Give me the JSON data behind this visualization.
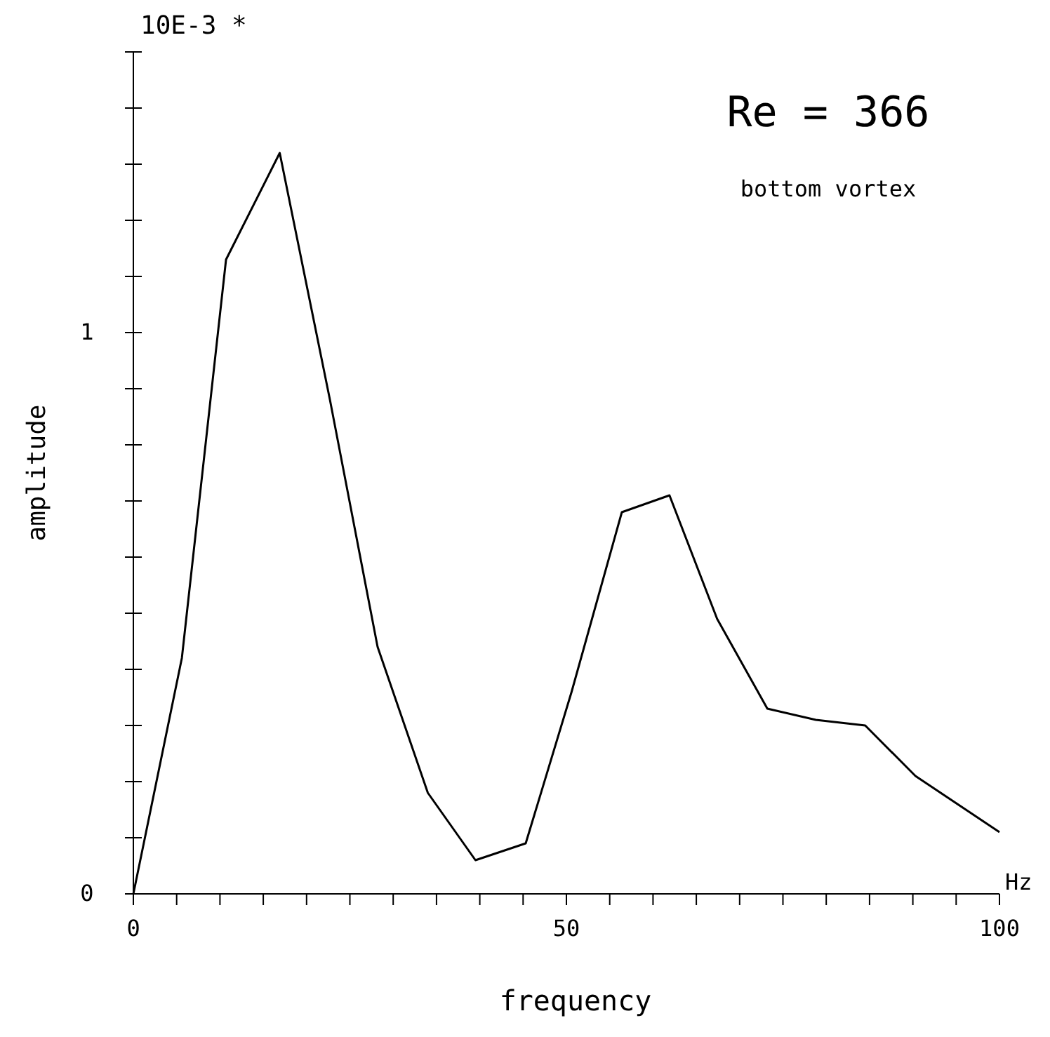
{
  "chart_data": {
    "type": "line",
    "xlabel": "frequency",
    "ylabel": "amplitude",
    "annotations": [
      "10E-3 *",
      "Re = 366",
      "bottom vortex",
      "Hz"
    ],
    "x": [
      0,
      5.6,
      10.7,
      16.9,
      22.7,
      28.2,
      34,
      39.5,
      45.3,
      50.6,
      56.4,
      61.9,
      67.4,
      73.2,
      78.8,
      84.5,
      90.3,
      100
    ],
    "series": [
      {
        "color": "#000000",
        "values": [
          0,
          0.42,
          1.13,
          1.32,
          0.88,
          0.44,
          0.18,
          0.06,
          0.09,
          0.36,
          0.68,
          0.71,
          0.49,
          0.33,
          0.31,
          0.3,
          0.21,
          0.11
        ]
      }
    ],
    "xlim": [
      0,
      100
    ],
    "ylim": [
      0,
      1.5
    ],
    "xticks": [
      0,
      {
        "value": 5,
        "label": null
      },
      {
        "value": 10,
        "label": null
      },
      {
        "value": 15,
        "label": null
      },
      {
        "value": 20,
        "label": null
      },
      {
        "value": 25,
        "label": null
      },
      {
        "value": 30,
        "label": null
      },
      {
        "value": 35,
        "label": null
      },
      {
        "value": 40,
        "label": null
      },
      {
        "value": 45,
        "label": null
      },
      50,
      {
        "value": 55,
        "label": null
      },
      {
        "value": 60,
        "label": null
      },
      {
        "value": 65,
        "label": null
      },
      {
        "value": 70,
        "label": null
      },
      {
        "value": 75,
        "label": null
      },
      {
        "value": 80,
        "label": null
      },
      {
        "value": 85,
        "label": null
      },
      {
        "value": 90,
        "label": null
      },
      {
        "value": 95,
        "label": null
      },
      100
    ],
    "yticks": [
      0,
      {
        "value": 0.1,
        "label": null
      },
      {
        "value": 0.2,
        "label": null
      },
      {
        "value": 0.3,
        "label": null
      },
      {
        "value": 0.4,
        "label": null
      },
      {
        "value": 0.5,
        "label": null
      },
      {
        "value": 0.6,
        "label": null
      },
      {
        "value": 0.7,
        "label": null
      },
      {
        "value": 0.8,
        "label": null
      },
      {
        "value": 0.9,
        "label": null
      },
      1,
      {
        "value": 1.1,
        "label": null
      },
      {
        "value": 1.2,
        "label": null
      },
      {
        "value": 1.3,
        "label": null
      },
      {
        "value": 1.4,
        "label": null
      },
      {
        "value": 1.5,
        "label": null
      }
    ],
    "grid": false,
    "marker": "none",
    "line_style": "solid"
  }
}
